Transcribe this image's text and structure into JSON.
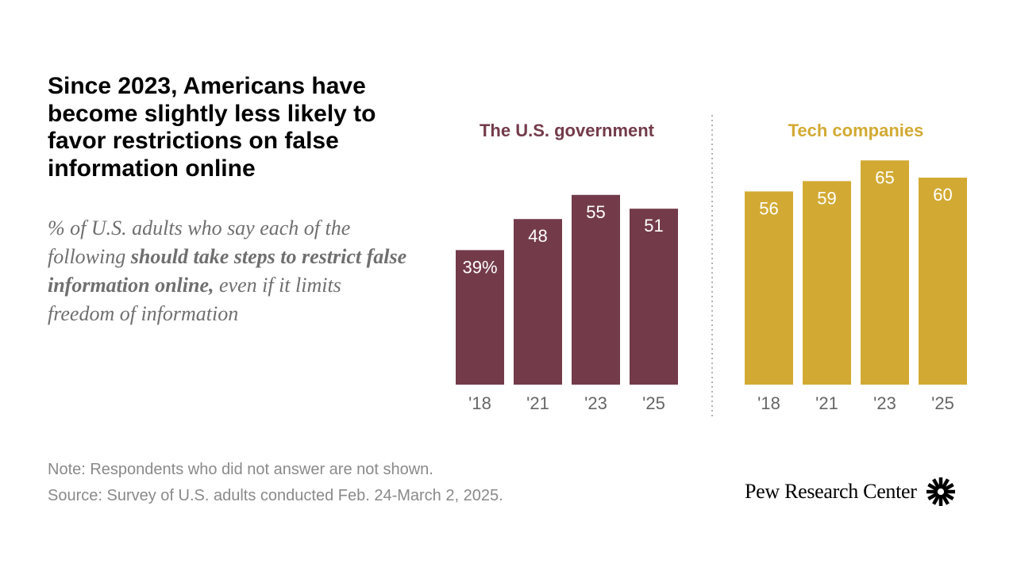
{
  "headline": "Since 2023, Americans have become slightly less likely to favor restrictions on false information online",
  "subtitle": {
    "part1": "% of U.S. adults who say each of the following ",
    "bold": "should take steps to restrict false information online,",
    "part2": " even if it limits freedom of information"
  },
  "notes": {
    "note": "Note: Respondents who did not answer are not shown.",
    "source": "Source: Survey of U.S. adults conducted Feb. 24-March 2, 2025."
  },
  "brand": {
    "name": "Pew Research Center",
    "logo_icon": "pew-sunburst-icon"
  },
  "chart_data": {
    "type": "bar",
    "categories": [
      "'18",
      "'21",
      "'23",
      "'25"
    ],
    "panels": [
      {
        "name": "The U.S. government",
        "color": "#733b4a",
        "values": [
          39,
          48,
          55,
          51
        ],
        "labels": [
          "39%",
          "48",
          "55",
          "51"
        ]
      },
      {
        "name": "Tech companies",
        "color": "#d2aa33",
        "values": [
          56,
          59,
          65,
          60
        ],
        "labels": [
          "56",
          "59",
          "65",
          "60"
        ]
      }
    ],
    "ylim": [
      0,
      100
    ],
    "grid": false,
    "legend": "none",
    "label_color": "#ffffff",
    "tick_color": "#666666",
    "divider": "dotted"
  }
}
